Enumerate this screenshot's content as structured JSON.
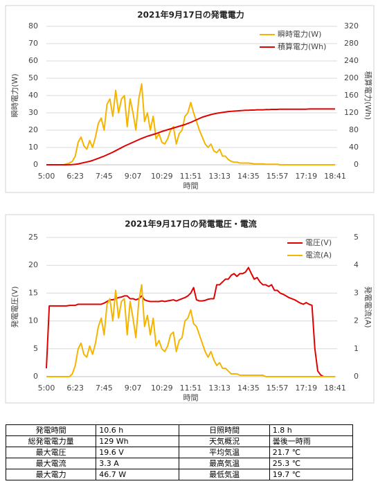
{
  "chart_data": [
    {
      "type": "line",
      "title": "2021年9月17日の発電電力",
      "x_label": "時間",
      "y_label": "瞬時電力(W)",
      "y2_label": "積算電力(Wh)",
      "categories": [
        "5:00",
        null,
        null,
        null,
        null,
        null,
        null,
        null,
        null,
        null,
        "6:23",
        null,
        null,
        null,
        null,
        null,
        null,
        null,
        null,
        null,
        "7:45",
        null,
        null,
        null,
        null,
        null,
        null,
        null,
        null,
        null,
        "9:07",
        null,
        null,
        null,
        null,
        null,
        null,
        null,
        null,
        null,
        "10:29",
        null,
        null,
        null,
        null,
        null,
        null,
        null,
        null,
        null,
        "11:51",
        null,
        null,
        null,
        null,
        null,
        null,
        null,
        null,
        null,
        "13:13",
        null,
        null,
        null,
        null,
        null,
        null,
        null,
        null,
        null,
        "14:35",
        null,
        null,
        null,
        null,
        null,
        null,
        null,
        null,
        null,
        "15:57",
        null,
        null,
        null,
        null,
        null,
        null,
        null,
        null,
        null,
        "17:19",
        null,
        null,
        null,
        null,
        null,
        null,
        null,
        null,
        null,
        "18:41"
      ],
      "series": [
        {
          "name": "瞬時電力(W)",
          "color": "#f5b400",
          "axis": "y",
          "values": [
            0,
            0,
            0,
            0,
            0,
            0,
            0,
            0.5,
            1,
            2,
            5,
            13,
            16,
            11,
            9,
            14,
            10,
            16,
            24,
            27,
            20,
            35,
            38,
            28,
            43,
            30,
            38,
            40,
            22,
            38,
            30,
            20,
            38,
            46.7,
            25,
            30,
            20,
            28,
            15,
            18,
            13,
            12,
            15,
            20,
            22,
            12,
            18,
            20,
            28,
            30,
            36,
            30,
            25,
            20,
            16,
            12,
            10,
            12,
            8,
            7,
            9,
            5,
            5,
            3,
            2,
            1.5,
            1.5,
            1,
            1,
            1,
            1,
            0.8,
            0.5,
            0.5,
            0.5,
            0.5,
            0.3,
            0.3,
            0.3,
            0.3,
            0.3,
            0,
            0,
            0,
            0,
            0,
            0,
            0,
            0,
            0,
            0,
            0,
            0,
            0,
            0,
            0,
            0,
            0,
            0,
            0,
            0
          ]
        },
        {
          "name": "積算電力(Wh)",
          "color": "#e00000",
          "axis": "y2",
          "values": [
            0,
            0,
            0,
            0,
            0,
            0,
            0,
            0,
            0.2,
            0.5,
            1,
            2,
            3.5,
            5,
            6.5,
            8,
            10,
            12.5,
            15,
            17.5,
            20,
            23,
            26,
            29,
            32.5,
            36,
            39.5,
            43,
            46,
            49,
            52,
            55,
            58,
            61,
            63.5,
            66,
            68,
            70,
            72,
            74.5,
            77,
            79,
            81,
            83,
            85,
            87,
            89,
            91,
            93,
            95.5,
            98,
            101,
            104,
            107,
            110,
            112,
            114,
            116,
            117.5,
            119,
            120,
            121,
            122,
            123,
            123.5,
            124,
            124.5,
            125,
            125.5,
            126,
            126,
            126.5,
            126.5,
            127,
            127,
            127,
            127.5,
            127.5,
            128,
            128,
            128,
            128.5,
            128.5,
            128.5,
            128.5,
            128.5,
            128.5,
            128.5,
            128.5,
            128.5,
            128.5,
            129,
            129,
            129,
            129,
            129,
            129,
            129,
            129,
            129,
            129
          ]
        }
      ],
      "ylim": [
        0,
        80
      ],
      "yticks": [
        0,
        10,
        20,
        30,
        40,
        50,
        60,
        70,
        80
      ],
      "y2lim": [
        0,
        320
      ],
      "y2ticks": [
        0,
        40,
        80,
        120,
        160,
        200,
        240,
        280,
        320
      ],
      "grid": true,
      "legend": "upper right"
    },
    {
      "type": "line",
      "title": "2021年9月17日の発電電圧・電流",
      "x_label": "時間",
      "y_label": "発電電圧(V)",
      "y2_label": "発電電流(A)",
      "categories": [
        "5:00",
        null,
        null,
        null,
        null,
        null,
        null,
        null,
        null,
        null,
        "6:23",
        null,
        null,
        null,
        null,
        null,
        null,
        null,
        null,
        null,
        "7:45",
        null,
        null,
        null,
        null,
        null,
        null,
        null,
        null,
        null,
        "9:07",
        null,
        null,
        null,
        null,
        null,
        null,
        null,
        null,
        null,
        "10:29",
        null,
        null,
        null,
        null,
        null,
        null,
        null,
        null,
        null,
        "11:51",
        null,
        null,
        null,
        null,
        null,
        null,
        null,
        null,
        null,
        "13:13",
        null,
        null,
        null,
        null,
        null,
        null,
        null,
        null,
        null,
        "14:35",
        null,
        null,
        null,
        null,
        null,
        null,
        null,
        null,
        null,
        "15:57",
        null,
        null,
        null,
        null,
        null,
        null,
        null,
        null,
        null,
        "17:19",
        null,
        null,
        null,
        null,
        null,
        null,
        null,
        null,
        null,
        "18:41"
      ],
      "series": [
        {
          "name": "電圧(V)",
          "color": "#e00000",
          "axis": "y",
          "values": [
            1.5,
            12.7,
            12.7,
            12.7,
            12.7,
            12.7,
            12.7,
            12.7,
            12.8,
            12.8,
            12.8,
            13,
            13,
            13,
            13,
            13,
            13,
            13,
            13,
            13,
            13.2,
            13.5,
            13.8,
            13.8,
            14,
            14.2,
            14.3,
            14.5,
            14.5,
            14,
            14,
            13.8,
            14,
            14.5,
            13.8,
            13.6,
            13.5,
            13.5,
            13.5,
            13.5,
            13.6,
            13.5,
            13.6,
            13.7,
            13.8,
            13.6,
            13.8,
            14,
            14.2,
            14.5,
            15,
            16,
            13.8,
            13.6,
            13.6,
            13.7,
            13.9,
            14,
            14,
            16.5,
            16.5,
            17,
            17.5,
            17.5,
            18.2,
            18.5,
            18,
            18.5,
            18.5,
            18.8,
            19.6,
            18.5,
            17.5,
            17.8,
            17,
            16.5,
            16.5,
            16.2,
            16.5,
            15.5,
            15.5,
            15,
            14.8,
            14.5,
            14.2,
            14,
            13.8,
            13.5,
            13.2,
            13,
            13.3,
            13,
            12.8,
            5,
            1,
            0.3,
            0,
            0,
            0,
            0,
            0
          ]
        },
        {
          "name": "電流(A)",
          "color": "#f5b400",
          "axis": "y2",
          "values": [
            0,
            0,
            0,
            0,
            0,
            0,
            0,
            0,
            0,
            0.1,
            0.4,
            1,
            1.2,
            0.8,
            0.7,
            1.1,
            0.8,
            1.2,
            1.8,
            2.1,
            1.5,
            2.6,
            2.8,
            2,
            3.1,
            2.1,
            2.7,
            2.8,
            1.5,
            2.7,
            2.1,
            1.4,
            2.7,
            3.3,
            1.8,
            2.2,
            1.5,
            2.1,
            1.1,
            1.3,
            1,
            0.9,
            1.1,
            1.5,
            1.6,
            0.9,
            1.3,
            1.4,
            2,
            2.1,
            2.4,
            1.9,
            1.8,
            1.5,
            1.2,
            0.9,
            0.7,
            0.9,
            0.6,
            0.4,
            0.5,
            0.3,
            0.3,
            0.2,
            0.1,
            0.1,
            0.1,
            0.05,
            0.05,
            0.05,
            0.05,
            0.05,
            0.05,
            0.05,
            0.05,
            0.05,
            0,
            0,
            0,
            0,
            0,
            0,
            0,
            0,
            0,
            0,
            0,
            0,
            0,
            0,
            0,
            0,
            0,
            0,
            0,
            0,
            0,
            0,
            0,
            0,
            0
          ]
        }
      ],
      "ylim": [
        0,
        25
      ],
      "yticks": [
        0,
        5,
        10,
        15,
        20,
        25
      ],
      "y2lim": [
        0,
        5
      ],
      "y2ticks": [
        0,
        1,
        2,
        3,
        4,
        5
      ],
      "grid": true,
      "legend": "upper right"
    }
  ],
  "table": {
    "rows": [
      [
        "発電時間",
        "10.6 h",
        "日照時間",
        "1.8 h"
      ],
      [
        "総発電電力量",
        "129 Wh",
        "天気概況",
        "曇後一時雨"
      ],
      [
        "最大電圧",
        "19.6 V",
        "平均気温",
        "21.7 ℃"
      ],
      [
        "最大電流",
        "3.3 A",
        "最高気温",
        "25.3 ℃"
      ],
      [
        "最大電力",
        "46.7 W",
        "最低気温",
        "19.7 ℃"
      ]
    ]
  }
}
